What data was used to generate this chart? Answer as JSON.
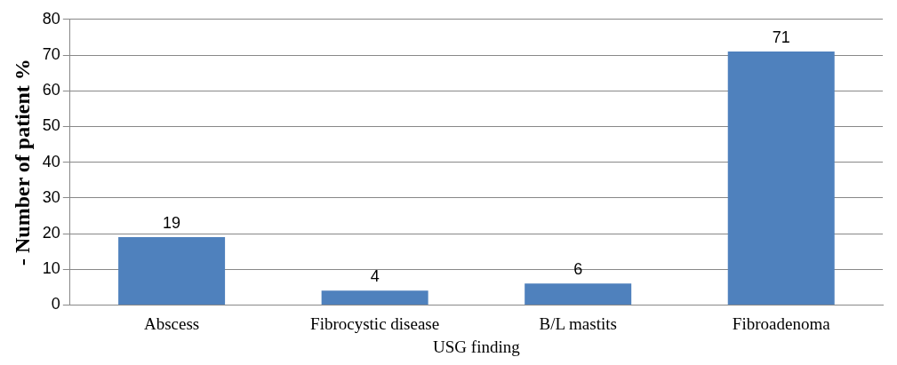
{
  "chart_data": {
    "type": "bar",
    "ylabel": "- Number of patient %",
    "xlabel": "USG finding",
    "categories": [
      "Abscess",
      "Fibrocystic disease",
      "B/L mastits",
      "Fibroadenoma"
    ],
    "values": [
      19,
      4,
      6,
      71
    ],
    "color": "#4f81bd",
    "ylim": [
      0,
      80
    ],
    "yticks": [
      0,
      10,
      20,
      30,
      40,
      50,
      60,
      70,
      80
    ],
    "grid": "y",
    "data_labels": true
  }
}
